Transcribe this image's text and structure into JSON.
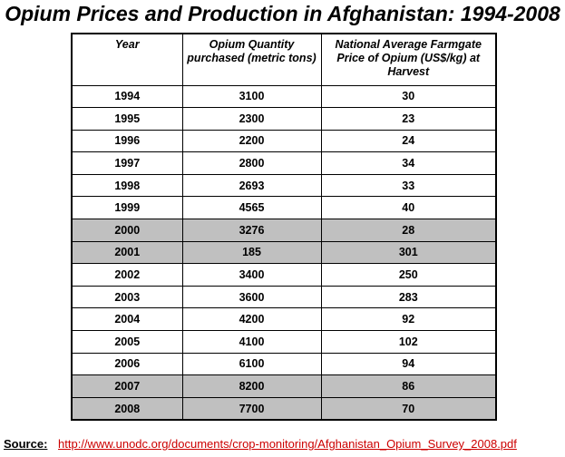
{
  "chart_data": {
    "type": "table",
    "title": "Opium Prices and Production in Afghanistan: 1994-2008",
    "columns": [
      "Year",
      "Opium Quantity purchased (metric tons)",
      "National Average Farmgate Price of Opium (US$/kg) at Harvest"
    ],
    "rows": [
      {
        "year": "1994",
        "quantity": "3100",
        "price": "30",
        "shaded": false
      },
      {
        "year": "1995",
        "quantity": "2300",
        "price": "23",
        "shaded": false
      },
      {
        "year": "1996",
        "quantity": "2200",
        "price": "24",
        "shaded": false
      },
      {
        "year": "1997",
        "quantity": "2800",
        "price": "34",
        "shaded": false
      },
      {
        "year": "1998",
        "quantity": "2693",
        "price": "33",
        "shaded": false
      },
      {
        "year": "1999",
        "quantity": "4565",
        "price": "40",
        "shaded": false
      },
      {
        "year": "2000",
        "quantity": "3276",
        "price": "28",
        "shaded": true
      },
      {
        "year": "2001",
        "quantity": "185",
        "price": "301",
        "shaded": true
      },
      {
        "year": "2002",
        "quantity": "3400",
        "price": "250",
        "shaded": false
      },
      {
        "year": "2003",
        "quantity": "3600",
        "price": "283",
        "shaded": false
      },
      {
        "year": "2004",
        "quantity": "4200",
        "price": "92",
        "shaded": false
      },
      {
        "year": "2005",
        "quantity": "4100",
        "price": "102",
        "shaded": false
      },
      {
        "year": "2006",
        "quantity": "6100",
        "price": "94",
        "shaded": false
      },
      {
        "year": "2007",
        "quantity": "8200",
        "price": "86",
        "shaded": true
      },
      {
        "year": "2008",
        "quantity": "7700",
        "price": "70",
        "shaded": true
      }
    ],
    "shade_color": "#c0c0c0"
  },
  "source": {
    "label": "Source:",
    "url": "http://www.unodc.org/documents/crop-monitoring/Afghanistan_Opium_Survey_2008.pdf",
    "url_color": "#cc0000"
  }
}
